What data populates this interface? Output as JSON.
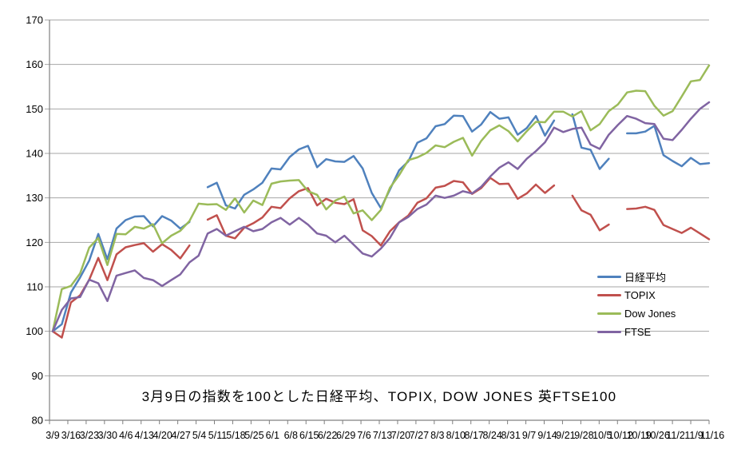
{
  "caption": "3月9日の指数を100とした日経平均、TOPIX, DOW JONES 英FTSE100",
  "y_axis": {
    "min": 80,
    "max": 170,
    "step": 10,
    "tick_labels": [
      "170",
      "160",
      "150",
      "140",
      "130",
      "120",
      "110",
      "100",
      "90",
      "80"
    ]
  },
  "x_axis": {
    "tick_labels": [
      "3/9",
      "3/16",
      "3/23",
      "3/30",
      "4/6",
      "4/13",
      "4/20",
      "4/27",
      "5/4",
      "5/11",
      "5/18",
      "5/25",
      "6/1",
      "6/8",
      "6/15",
      "6/22",
      "6/29",
      "7/6",
      "7/13",
      "7/20",
      "7/27",
      "8/3",
      "8/10",
      "8/17",
      "8/24",
      "8/31",
      "9/7",
      "9/14",
      "9/21",
      "9/28",
      "10/5",
      "10/12",
      "10/19",
      "10/26",
      "11/2",
      "11/9",
      "11/16"
    ]
  },
  "style": {
    "background": "#FFFFFF",
    "gridline_color": "#A6A6A6",
    "axis_color": "#808080",
    "text_color": "#000000"
  },
  "chart_data": {
    "type": "line",
    "title": "3月9日の指数を100とした日経平均、TOPIX, DOW JONES 英FTSE100",
    "ylabel": "",
    "xlabel": "",
    "ylim": [
      80,
      170
    ],
    "grid": true,
    "legend_position": "middle-right",
    "xtick_labels": [
      "3/9",
      "3/16",
      "3/23",
      "3/30",
      "4/6",
      "4/13",
      "4/20",
      "4/27",
      "5/4",
      "5/11",
      "5/18",
      "5/25",
      "6/1",
      "6/8",
      "6/15",
      "6/22",
      "6/29",
      "7/6",
      "7/13",
      "7/20",
      "7/27",
      "8/3",
      "8/10",
      "8/17",
      "8/24",
      "8/31",
      "9/7",
      "9/14",
      "9/21",
      "9/28",
      "10/5",
      "10/12",
      "10/19",
      "10/26",
      "11/2",
      "11/9",
      "11/16"
    ],
    "x": [
      "3/9",
      "3/12",
      "3/16",
      "3/19",
      "3/23",
      "3/26",
      "3/30",
      "4/2",
      "4/6",
      "4/9",
      "4/13",
      "4/16",
      "4/20",
      "4/23",
      "4/27",
      "4/30",
      "5/4",
      "5/7",
      "5/11",
      "5/14",
      "5/18",
      "5/21",
      "5/25",
      "5/28",
      "6/1",
      "6/4",
      "6/8",
      "6/11",
      "6/15",
      "6/18",
      "6/22",
      "6/25",
      "6/29",
      "7/2",
      "7/6",
      "7/9",
      "7/13",
      "7/16",
      "7/20",
      "7/23",
      "7/27",
      "7/30",
      "8/3",
      "8/6",
      "8/10",
      "8/13",
      "8/17",
      "8/20",
      "8/24",
      "8/27",
      "8/31",
      "9/3",
      "9/7",
      "9/10",
      "9/14",
      "9/17",
      "9/21",
      "9/24",
      "9/28",
      "10/1",
      "10/5",
      "10/8",
      "10/12",
      "10/15",
      "10/19",
      "10/22",
      "10/26",
      "10/29",
      "11/2",
      "11/5",
      "11/9",
      "11/12",
      "11/16"
    ],
    "series": [
      {
        "key": "nikkei",
        "name": "日経平均",
        "color": "#4F81BD",
        "values": [
          100.0,
          101.6,
          108.7,
          112.1,
          115.9,
          121.9,
          116.2,
          123.1,
          125.0,
          125.8,
          125.9,
          123.6,
          125.9,
          124.9,
          123.1,
          124.6,
          null,
          132.4,
          133.4,
          128.3,
          127.6,
          130.7,
          131.9,
          133.4,
          136.6,
          136.4,
          139.2,
          140.9,
          141.7,
          136.9,
          138.7,
          138.2,
          138.1,
          139.4,
          136.6,
          131.1,
          127.7,
          131.9,
          136.2,
          138.2,
          142.4,
          143.4,
          146.1,
          146.6,
          148.5,
          148.4,
          144.9,
          146.5,
          149.3,
          147.8,
          148.1,
          144.2,
          145.7,
          148.4,
          144.0,
          147.4,
          null,
          148.8,
          141.3,
          140.8,
          136.5,
          138.8,
          null,
          144.5,
          144.5,
          144.9,
          146.2,
          139.6,
          138.3,
          137.1,
          139.0,
          137.6,
          137.8
        ]
      },
      {
        "key": "topix",
        "name": "TOPIX",
        "color": "#C0504D",
        "values": [
          100.0,
          98.6,
          106.5,
          108.1,
          111.6,
          116.5,
          111.5,
          117.3,
          118.9,
          119.4,
          119.8,
          117.9,
          119.6,
          118.3,
          116.4,
          119.3,
          null,
          125.1,
          126.1,
          121.5,
          120.9,
          123.3,
          124.3,
          125.6,
          128.0,
          127.7,
          129.9,
          131.5,
          132.2,
          128.3,
          129.8,
          128.9,
          128.6,
          129.7,
          122.7,
          121.4,
          119.3,
          122.5,
          124.5,
          126.0,
          128.9,
          129.9,
          132.3,
          132.7,
          133.8,
          133.5,
          130.9,
          132.2,
          134.5,
          133.1,
          133.2,
          129.8,
          131.0,
          133.0,
          131.1,
          132.8,
          null,
          130.5,
          127.2,
          126.2,
          122.7,
          124.0,
          null,
          127.5,
          127.6,
          128.0,
          127.3,
          123.9,
          123.0,
          122.1,
          123.3,
          122.0,
          120.7
        ]
      },
      {
        "key": "dow-jones",
        "name": "Dow Jones",
        "color": "#9BBB59",
        "values": [
          100.0,
          109.5,
          110.2,
          113.0,
          118.8,
          121.0,
          114.9,
          121.9,
          121.8,
          123.5,
          123.1,
          124.1,
          119.8,
          121.5,
          122.6,
          124.8,
          128.7,
          128.5,
          128.6,
          127.3,
          129.9,
          126.7,
          129.4,
          128.4,
          133.2,
          133.7,
          133.9,
          134.0,
          131.5,
          130.7,
          127.4,
          129.4,
          130.3,
          126.5,
          127.2,
          125.0,
          127.3,
          132.3,
          135.1,
          138.5,
          139.1,
          140.1,
          141.8,
          141.4,
          142.6,
          143.5,
          139.5,
          142.8,
          145.2,
          146.3,
          145.0,
          142.7,
          145.0,
          147.1,
          147.0,
          149.4,
          149.4,
          148.3,
          149.5,
          145.2,
          146.6,
          149.5,
          151.0,
          153.7,
          154.1,
          154.0,
          150.7,
          148.5,
          149.5,
          152.8,
          156.2,
          156.5,
          159.8
        ]
      },
      {
        "key": "ftse",
        "name": "FTSE",
        "color": "#8064A2",
        "values": [
          100.0,
          104.8,
          107.4,
          107.7,
          111.6,
          110.8,
          106.8,
          112.5,
          113.1,
          113.7,
          112.0,
          111.5,
          110.2,
          111.5,
          112.8,
          115.5,
          117.0,
          122.0,
          123.0,
          121.5,
          122.5,
          123.5,
          122.5,
          123.0,
          124.5,
          125.5,
          124.0,
          125.5,
          124.0,
          122.0,
          121.5,
          120.0,
          121.5,
          119.5,
          117.5,
          116.8,
          118.6,
          121.0,
          124.5,
          125.7,
          127.5,
          128.5,
          130.5,
          130.0,
          130.5,
          131.5,
          131.0,
          132.5,
          134.8,
          136.8,
          138.0,
          136.5,
          138.8,
          140.5,
          142.5,
          145.8,
          144.8,
          145.5,
          145.8,
          142.0,
          141.0,
          144.2,
          146.4,
          148.4,
          147.8,
          146.8,
          146.6,
          143.3,
          143.0,
          145.3,
          147.8,
          150.0,
          151.5
        ]
      }
    ]
  }
}
